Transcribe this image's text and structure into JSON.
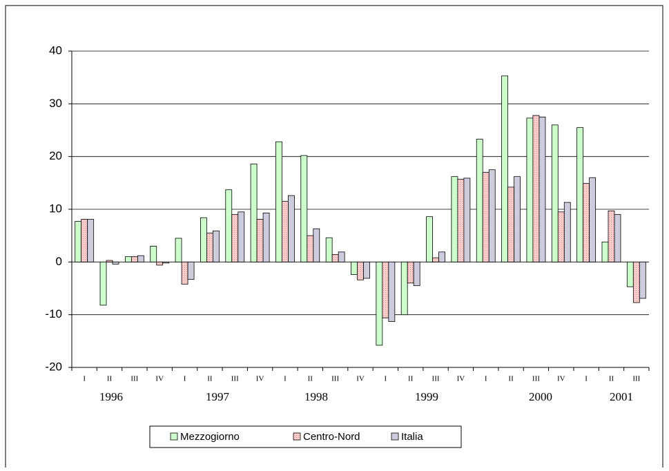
{
  "chart_data": {
    "type": "bar",
    "categories": [
      "I",
      "II",
      "III",
      "IV",
      "I",
      "II",
      "III",
      "IV",
      "I",
      "II",
      "III",
      "IV",
      "I",
      "II",
      "III",
      "IV",
      "I",
      "II",
      "III",
      "IV",
      "I",
      "II",
      "III"
    ],
    "years": [
      "1996",
      "1997",
      "1998",
      "1999",
      "2000",
      "2001"
    ],
    "series": [
      {
        "name": "Mezzogiorno",
        "color": "#ccffcc",
        "values": [
          7.7,
          -8.2,
          1.0,
          3.0,
          4.5,
          8.4,
          13.7,
          18.6,
          22.8,
          20.2,
          4.6,
          -2.4,
          -15.8,
          -10.0,
          8.6,
          16.2,
          23.3,
          35.3,
          27.3,
          26.0,
          25.5,
          3.8,
          -4.7
        ]
      },
      {
        "name": "Centro-Nord",
        "color": "#ffcccc",
        "values": [
          8.1,
          0.3,
          1.0,
          -0.6,
          -4.2,
          5.5,
          9.0,
          8.1,
          11.5,
          5.0,
          1.4,
          -3.4,
          -10.6,
          -4.0,
          0.8,
          15.7,
          17.0,
          14.2,
          27.8,
          9.5,
          14.9,
          9.7,
          -7.7
        ]
      },
      {
        "name": "Italia",
        "color": "#ccccdd",
        "values": [
          8.1,
          -0.4,
          1.2,
          -0.2,
          -3.3,
          5.9,
          9.5,
          9.3,
          12.6,
          6.3,
          1.9,
          -3.1,
          -11.3,
          -4.5,
          1.9,
          15.9,
          17.5,
          16.2,
          27.5,
          11.3,
          16.0,
          9.0,
          -6.9
        ]
      }
    ],
    "ylim": [
      -20,
      40
    ],
    "yticks": [
      -20,
      -10,
      0,
      10,
      20,
      30,
      40
    ],
    "grid": true,
    "legend": "bottom"
  }
}
